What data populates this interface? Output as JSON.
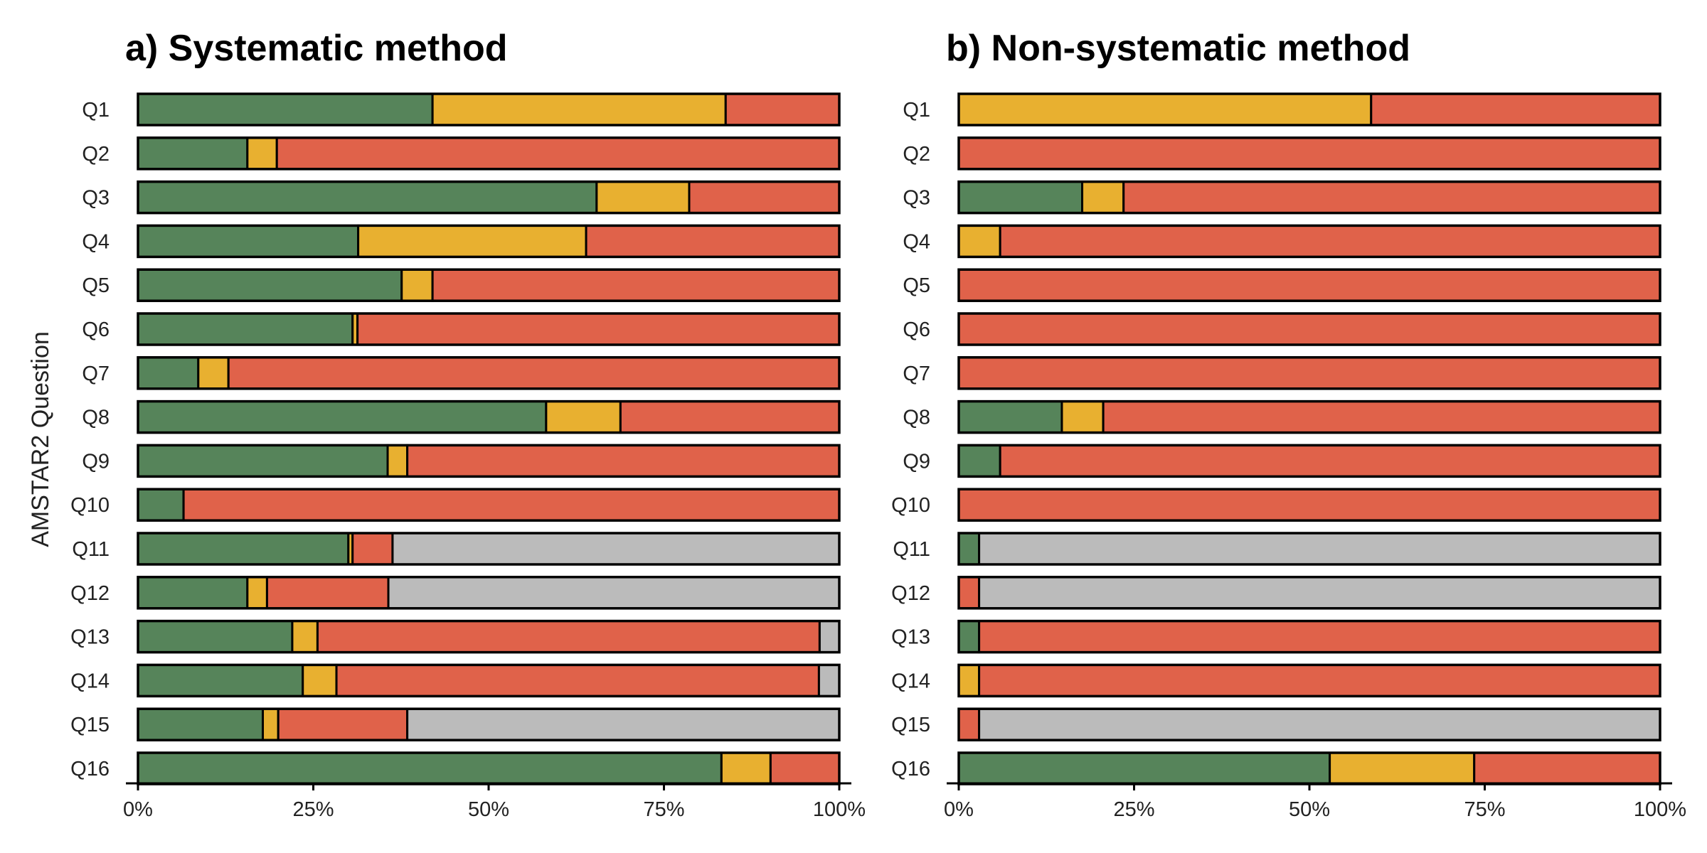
{
  "ylabel": "AMSTAR2 Question",
  "colors": {
    "green": "#56845A",
    "yellow": "#E8B030",
    "red": "#E0624A",
    "gray": "#BBBBBB"
  },
  "chart_data": [
    {
      "type": "bar",
      "orientation": "horizontal",
      "stacked": true,
      "title": "a) Systematic method",
      "categories": [
        "Q1",
        "Q2",
        "Q3",
        "Q4",
        "Q5",
        "Q6",
        "Q7",
        "Q8",
        "Q9",
        "Q10",
        "Q11",
        "Q12",
        "Q13",
        "Q14",
        "Q15",
        "Q16"
      ],
      "xlim": [
        0,
        100
      ],
      "x_ticks": [
        "0%",
        "25%",
        "50%",
        "75%",
        "100%"
      ],
      "series": [
        {
          "color": "green",
          "values": [
            42,
            15.6,
            65.4,
            31.4,
            37.6,
            30.6,
            8.6,
            58.2,
            35.6,
            6.5,
            30,
            15.6,
            22,
            23.5,
            17.8,
            83.2
          ]
        },
        {
          "color": "yellow",
          "values": [
            41.8,
            4.2,
            13.2,
            32.5,
            4.4,
            0.7,
            4.3,
            10.6,
            2.8,
            0,
            0.6,
            2.8,
            3.6,
            4.8,
            2.2,
            7
          ]
        },
        {
          "color": "red",
          "values": [
            16.2,
            80.2,
            21.4,
            36.1,
            58,
            68.7,
            87.1,
            31.2,
            61.6,
            93.5,
            5.7,
            17.3,
            71.6,
            68.8,
            18.4,
            9.8
          ]
        },
        {
          "color": "gray",
          "values": [
            0,
            0,
            0,
            0,
            0,
            0,
            0,
            0,
            0,
            0,
            63.7,
            64.3,
            2.8,
            2.9,
            61.6,
            0
          ]
        }
      ]
    },
    {
      "type": "bar",
      "orientation": "horizontal",
      "stacked": true,
      "title": "b) Non-systematic method",
      "categories": [
        "Q1",
        "Q2",
        "Q3",
        "Q4",
        "Q5",
        "Q6",
        "Q7",
        "Q8",
        "Q9",
        "Q10",
        "Q11",
        "Q12",
        "Q13",
        "Q14",
        "Q15",
        "Q16"
      ],
      "xlim": [
        0,
        100
      ],
      "x_ticks": [
        "0%",
        "25%",
        "50%",
        "75%",
        "100%"
      ],
      "series": [
        {
          "color": "green",
          "values": [
            0,
            0,
            17.6,
            0,
            0,
            0,
            0,
            14.7,
            5.9,
            0,
            2.9,
            0,
            2.9,
            0,
            0,
            52.9
          ]
        },
        {
          "color": "yellow",
          "values": [
            58.8,
            0,
            5.9,
            5.9,
            0,
            0,
            0,
            5.9,
            0,
            0,
            0,
            0,
            0,
            2.9,
            0,
            20.6
          ]
        },
        {
          "color": "red",
          "values": [
            41.2,
            100,
            76.5,
            94.1,
            100,
            100,
            100,
            79.4,
            94.1,
            100,
            0,
            2.9,
            97.1,
            97.1,
            2.9,
            26.5
          ]
        },
        {
          "color": "gray",
          "values": [
            0,
            0,
            0,
            0,
            0,
            0,
            0,
            0,
            0,
            0,
            97.1,
            97.1,
            0,
            0,
            97.1,
            0
          ]
        }
      ]
    }
  ]
}
